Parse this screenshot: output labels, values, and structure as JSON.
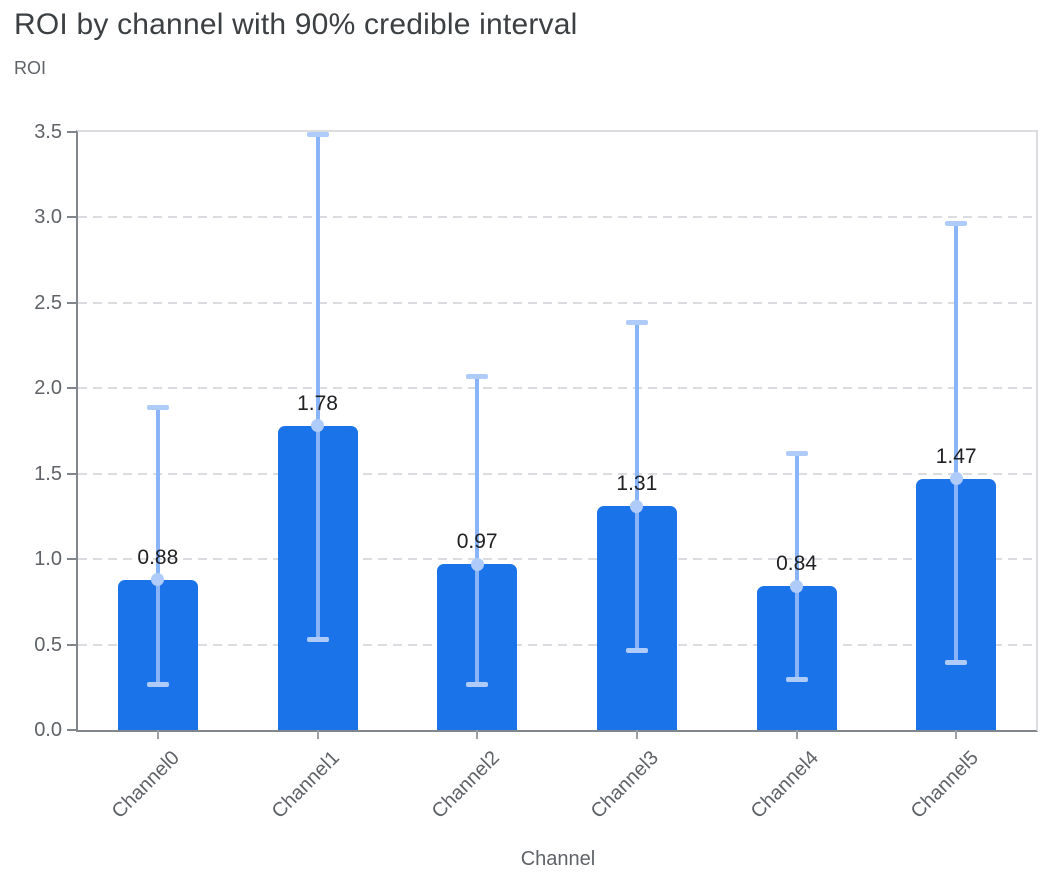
{
  "chart_data": {
    "type": "bar",
    "title": "ROI by channel with 90% credible interval",
    "ylabel": "ROI",
    "xlabel": "Channel",
    "categories": [
      "Channel0",
      "Channel1",
      "Channel2",
      "Channel3",
      "Channel4",
      "Channel5"
    ],
    "series": [
      {
        "name": "ROI",
        "values": [
          0.88,
          1.78,
          0.97,
          1.31,
          0.84,
          1.47
        ]
      }
    ],
    "value_labels": [
      "0.88",
      "1.78",
      "0.97",
      "1.31",
      "0.84",
      "1.47"
    ],
    "error_bars": {
      "name": "90% credible interval",
      "lower": [
        0.27,
        0.53,
        0.27,
        0.47,
        0.3,
        0.4
      ],
      "upper": [
        1.89,
        3.49,
        2.07,
        2.39,
        1.62,
        2.97
      ]
    },
    "ylim": [
      0,
      3.5
    ],
    "yticks": [
      0.0,
      0.5,
      1.0,
      1.5,
      2.0,
      2.5,
      3.0,
      3.5
    ],
    "ytick_labels": [
      "0.0",
      "0.5",
      "1.0",
      "1.5",
      "2.0",
      "2.5",
      "3.0",
      "3.5"
    ],
    "grid": "horizontal-dashed",
    "legend_position": "none",
    "colors": {
      "bar": "#1a73e8",
      "error_line": "#8ab4f8",
      "error_cap": "#aecbfa",
      "error_marker": "#aecbfa",
      "value_label": "#202124",
      "title": "#3c4043",
      "muted_text": "#5f6368",
      "gridline": "#dadce0",
      "axis_line": "#80868b"
    }
  }
}
